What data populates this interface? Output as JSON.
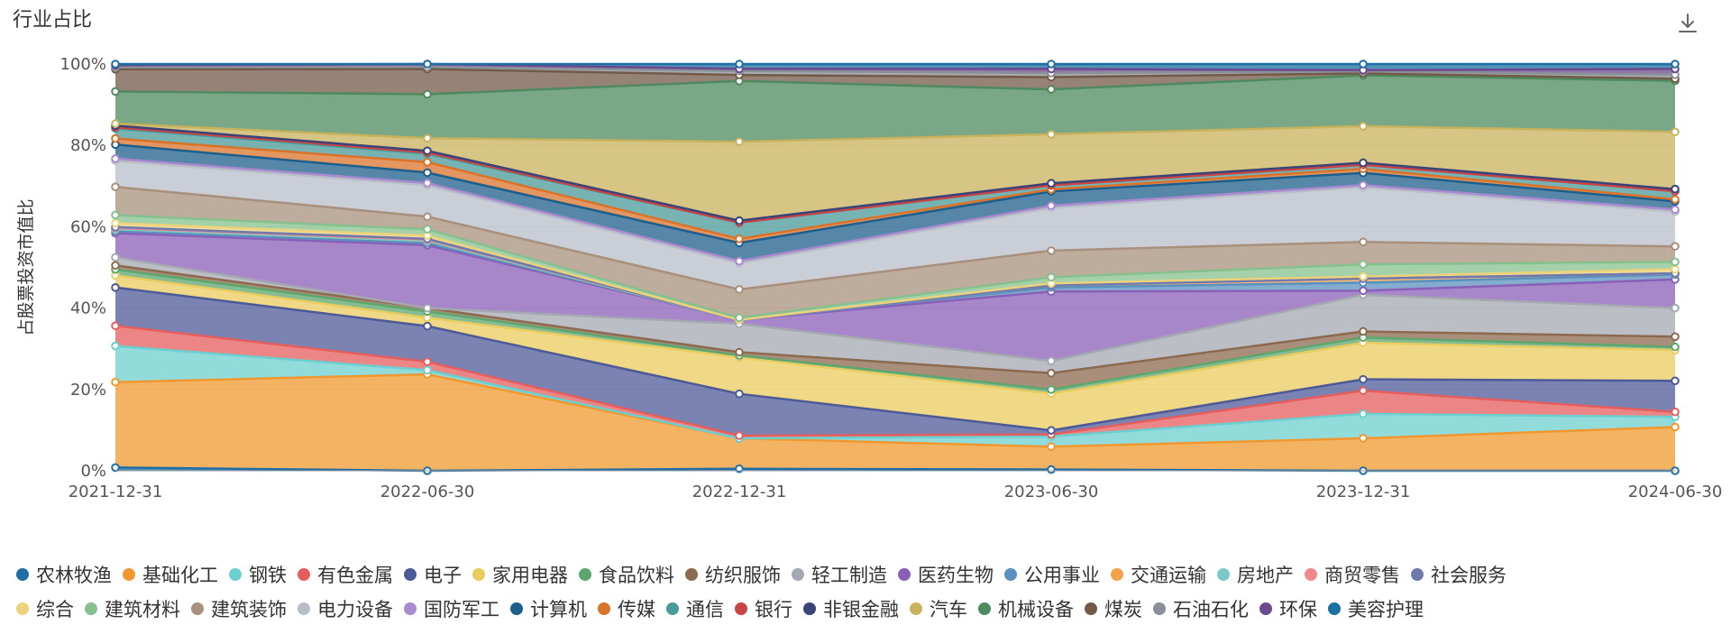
{
  "title": "行业占比",
  "toolbar": {
    "download_icon": "download-icon"
  },
  "chart_data": {
    "type": "area",
    "stacked": true,
    "normalized": true,
    "ylabel": "占股票投资市值比",
    "xlabel": "",
    "x": [
      "2021-12-31",
      "2022-06-30",
      "2022-12-31",
      "2023-06-30",
      "2023-12-31",
      "2024-06-30"
    ],
    "ylim": [
      0,
      100
    ],
    "yticks": [
      "0%",
      "20%",
      "40%",
      "60%",
      "80%",
      "100%"
    ],
    "legend_position": "bottom",
    "series": [
      {
        "name": "农林牧渔",
        "color": "#1f6fa6",
        "values": [
          0.8,
          0.0,
          0.5,
          0.3,
          0.0,
          0.0
        ]
      },
      {
        "name": "基础化工",
        "color": "#f0982f",
        "values": [
          21.2,
          23.0,
          7.5,
          5.6,
          8.0,
          10.7
        ]
      },
      {
        "name": "钢铁",
        "color": "#6ccfcf",
        "values": [
          9.0,
          1.0,
          0.0,
          2.5,
          6.0,
          2.5
        ]
      },
      {
        "name": "有色金属",
        "color": "#e55e5e",
        "values": [
          5.0,
          2.0,
          0.7,
          0.5,
          5.7,
          1.2
        ]
      },
      {
        "name": "电子",
        "color": "#4e5a97",
        "values": [
          9.5,
          8.5,
          10.3,
          1.0,
          2.8,
          7.6
        ]
      },
      {
        "name": "家用电器",
        "color": "#e9cc5f",
        "values": [
          3.0,
          2.0,
          9.0,
          9.0,
          9.0,
          7.5
        ]
      },
      {
        "name": "食品饮料",
        "color": "#5da66e",
        "values": [
          1.5,
          1.5,
          0.5,
          1.0,
          1.3,
          0.8
        ]
      },
      {
        "name": "纺织服饰",
        "color": "#8c6a4f",
        "values": [
          1.0,
          0.8,
          0.8,
          4.0,
          1.5,
          2.5
        ]
      },
      {
        "name": "轻工制造",
        "color": "#a4a8b0",
        "values": [
          2.0,
          0.0,
          7.0,
          3.0,
          9.0,
          7.0
        ]
      },
      {
        "name": "医药生物",
        "color": "#8a5fb8",
        "values": [
          6.0,
          15.0,
          1.0,
          17.0,
          1.0,
          7.0
        ]
      },
      {
        "name": "公用事业",
        "color": "#5a90bd",
        "values": [
          0.5,
          0.5,
          0.0,
          1.0,
          2.0,
          1.2
        ]
      },
      {
        "name": "交通运输",
        "color": "#f2a24b",
        "values": [
          0.5,
          0.5,
          0.0,
          0.5,
          1.0,
          0.3
        ]
      },
      {
        "name": "房地产",
        "color": "#7cc8c8",
        "values": [
          0.0,
          0.0,
          0.0,
          0.0,
          0.0,
          0.0
        ]
      },
      {
        "name": "商贸零售",
        "color": "#ee8a8a",
        "values": [
          0.3,
          0.3,
          0.0,
          0.0,
          0.0,
          0.0
        ]
      },
      {
        "name": "社会服务",
        "color": "#6f79ad",
        "values": [
          0.2,
          0.2,
          0.0,
          0.0,
          0.0,
          0.0
        ]
      },
      {
        "name": "综合",
        "color": "#ecd27a",
        "values": [
          1.0,
          0.8,
          0.0,
          0.5,
          0.5,
          1.0
        ]
      },
      {
        "name": "建筑材料",
        "color": "#86c08e",
        "values": [
          2.0,
          1.5,
          0.5,
          1.5,
          3.0,
          1.8
        ]
      },
      {
        "name": "建筑装饰",
        "color": "#a8907c",
        "values": [
          7.0,
          3.0,
          7.0,
          6.5,
          5.5,
          3.8
        ]
      },
      {
        "name": "电力设备",
        "color": "#b8bec8",
        "values": [
          6.5,
          7.5,
          6.5,
          10.5,
          13.5,
          8.5
        ]
      },
      {
        "name": "国防军工",
        "color": "#a98ad0",
        "values": [
          0.5,
          0.5,
          0.5,
          0.5,
          0.5,
          0.5
        ]
      },
      {
        "name": "计算机",
        "color": "#1d5f8c",
        "values": [
          3.5,
          2.5,
          4.5,
          3.5,
          3.0,
          2.0
        ]
      },
      {
        "name": "传媒",
        "color": "#d9732a",
        "values": [
          1.5,
          2.5,
          1.0,
          0.5,
          1.0,
          0.5
        ]
      },
      {
        "name": "通信",
        "color": "#4a9a9a",
        "values": [
          2.5,
          2.0,
          4.0,
          1.0,
          1.0,
          2.0
        ]
      },
      {
        "name": "银行",
        "color": "#c94444",
        "values": [
          0.3,
          0.3,
          0.0,
          0.0,
          0.0,
          0.0
        ]
      },
      {
        "name": "非银金融",
        "color": "#3b4478",
        "values": [
          0.4,
          0.4,
          0.5,
          0.5,
          0.5,
          0.5
        ]
      },
      {
        "name": "汽车",
        "color": "#c9b25c",
        "values": [
          0.5,
          3.0,
          19.5,
          12.0,
          9.0,
          14.0
        ]
      },
      {
        "name": "机械设备",
        "color": "#4e8a5e",
        "values": [
          8.0,
          10.5,
          15.0,
          11.0,
          12.5,
          12.5
        ]
      },
      {
        "name": "煤炭",
        "color": "#735a48",
        "values": [
          5.5,
          6.0,
          1.5,
          3.0,
          0.5,
          0.5
        ]
      },
      {
        "name": "石油石化",
        "color": "#8a8f98",
        "values": [
          0.5,
          0.5,
          1.0,
          1.0,
          0.5,
          1.0
        ]
      },
      {
        "name": "环保",
        "color": "#6a4a8e",
        "values": [
          0.5,
          0.7,
          0.5,
          1.0,
          0.3,
          1.4
        ]
      },
      {
        "name": "美容护理",
        "color": "#1a6fa3",
        "values": [
          0.3,
          0.0,
          1.2,
          1.2,
          1.5,
          1.2
        ]
      }
    ]
  }
}
